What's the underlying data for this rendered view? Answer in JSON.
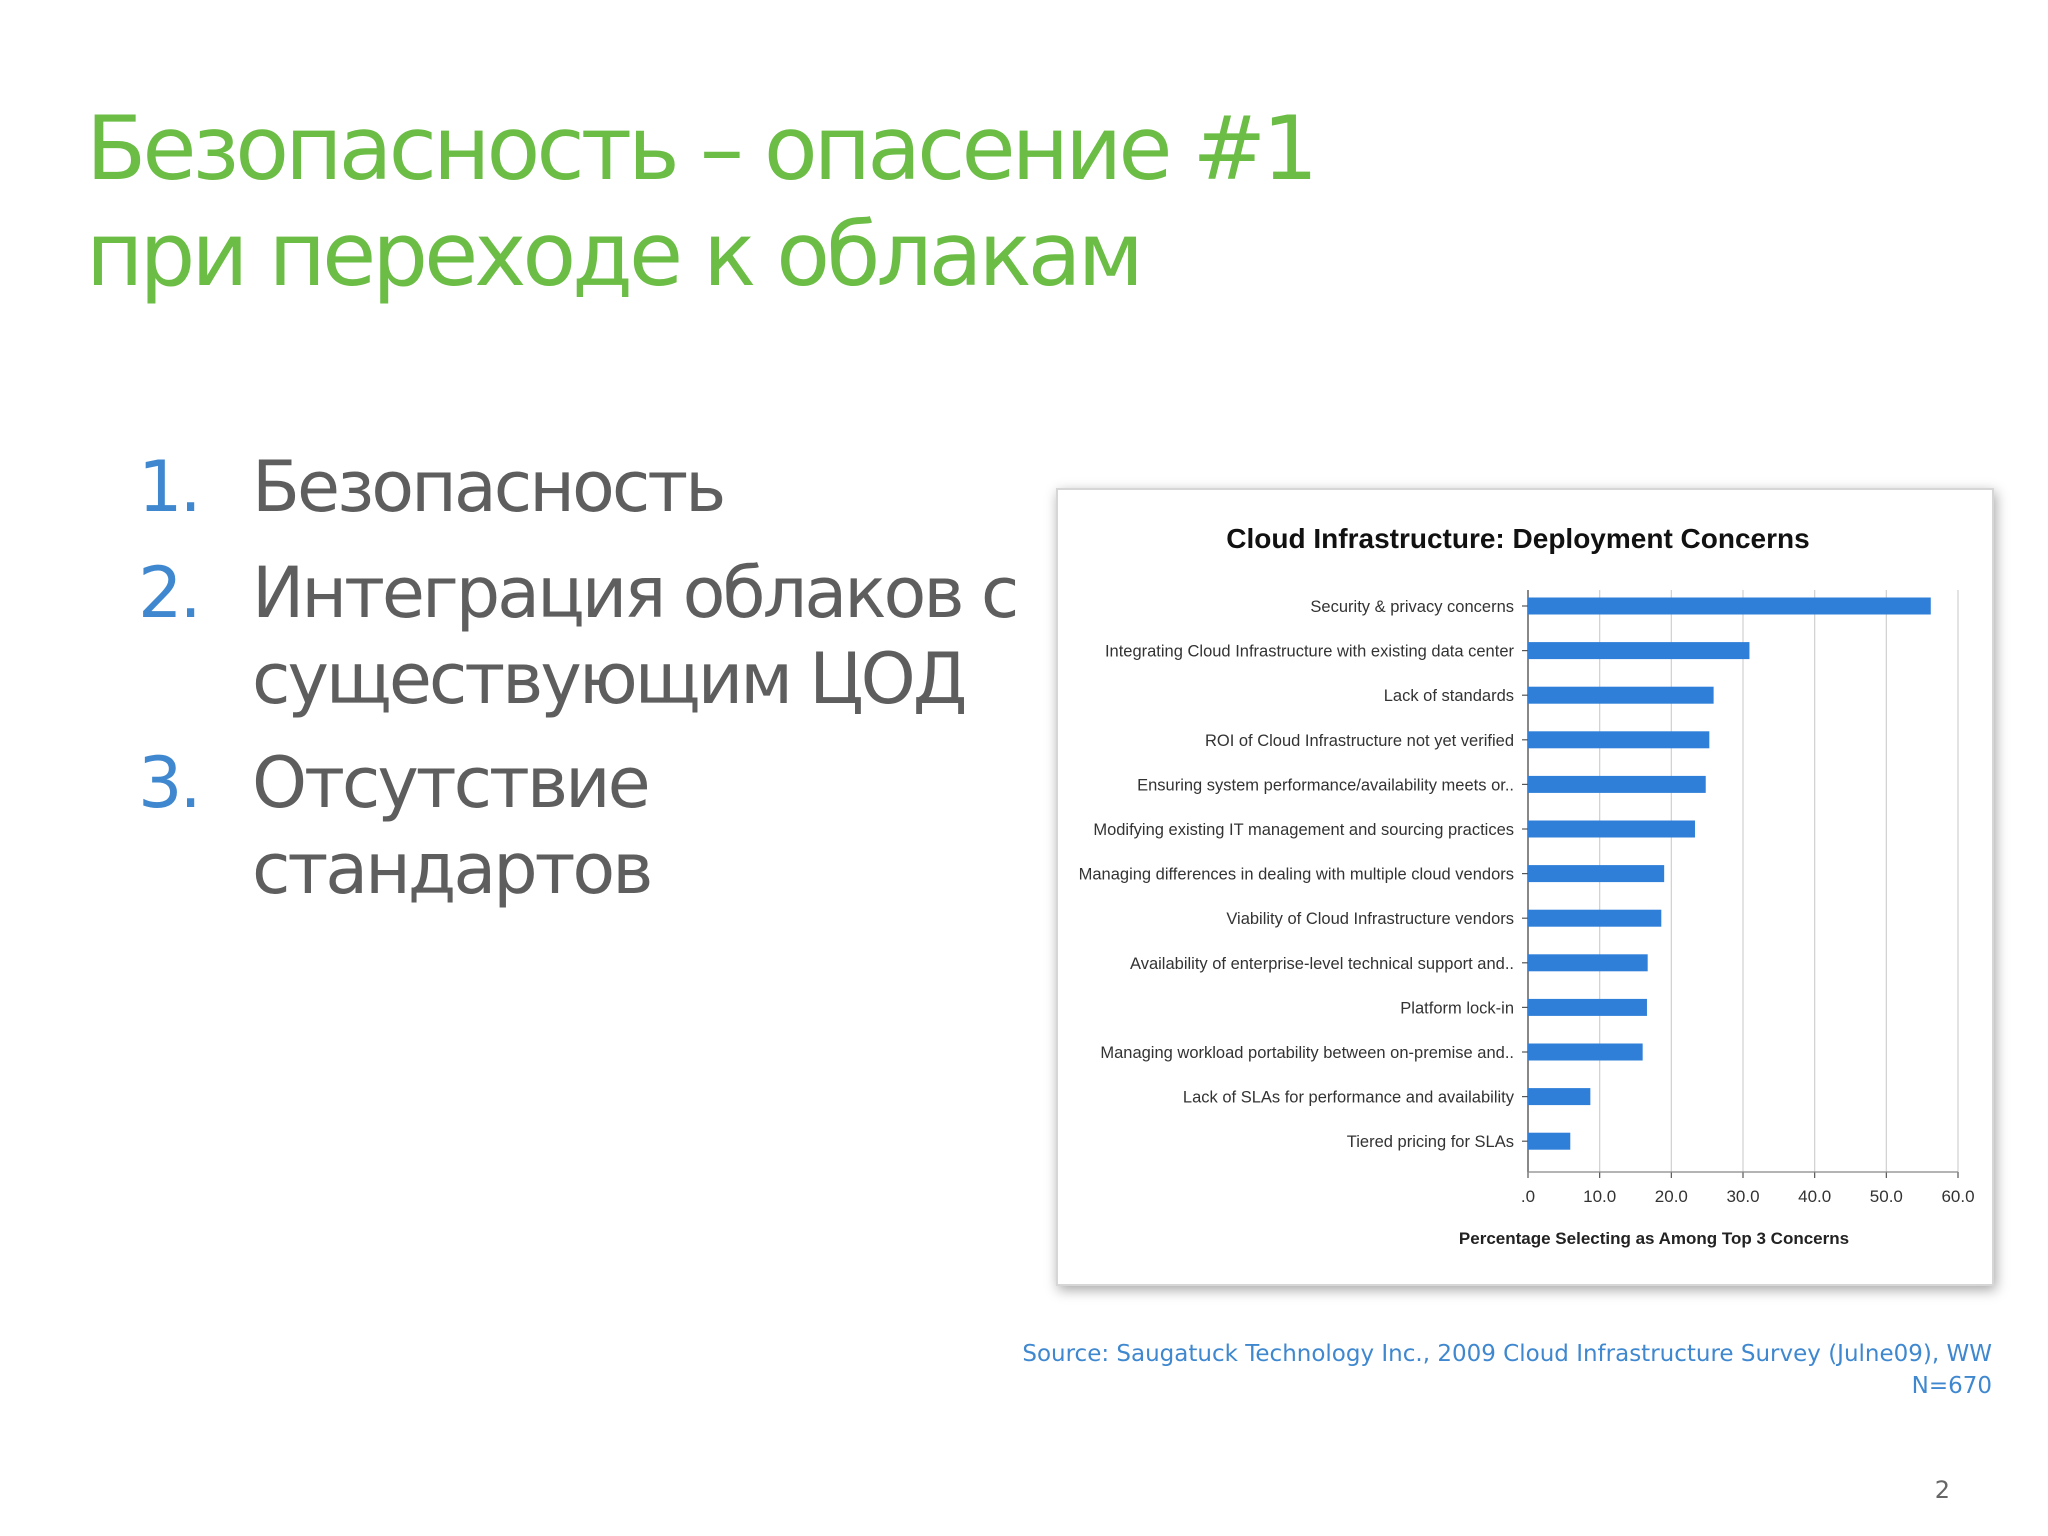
{
  "slide": {
    "title_line1": "Безопасность – опасение #1",
    "title_line2": "при переходе к облакам",
    "items": [
      {
        "num": "1.",
        "text": "Безопасность"
      },
      {
        "num": "2.",
        "text": "Интеграция облаков с существующим ЦОД"
      },
      {
        "num": "3.",
        "text": "Отсутствие стандартов"
      }
    ],
    "source": "Source: Saugatuck Technology Inc., 2009 Cloud Infrastructure Survey (Julne09), WW N=670",
    "page_number": "2"
  },
  "chart_data": {
    "type": "bar",
    "orientation": "horizontal",
    "title": "Cloud Infrastructure:  Deployment Concerns",
    "xlabel": "Percentage Selecting as Among Top 3 Concerns",
    "xlim": [
      0,
      60
    ],
    "xticks": [
      0,
      10,
      20,
      30,
      40,
      50,
      60
    ],
    "xtick_labels": [
      ".0",
      "10.0",
      "20.0",
      "30.0",
      "40.0",
      "50.0",
      "60.0"
    ],
    "grid": "vertical",
    "bar_color": "#2f7fd8",
    "categories": [
      "Security & privacy concerns",
      "Integrating Cloud Infrastructure with existing data center",
      "Lack of standards",
      "ROI of Cloud Infrastructure not yet verified",
      "Ensuring system performance/availability meets or..",
      "Modifying existing IT management and sourcing practices",
      "Managing differences in dealing with multiple cloud vendors",
      "Viability of Cloud Infrastructure vendors",
      "Availability of enterprise-level technical support and..",
      "Platform lock-in",
      "Managing workload portability between on-premise and..",
      "Lack of SLAs for performance and availability",
      "Tiered pricing for SLAs"
    ],
    "values": [
      56.2,
      30.9,
      25.9,
      25.3,
      24.8,
      23.3,
      19.0,
      18.6,
      16.7,
      16.6,
      16.0,
      8.7,
      5.9
    ]
  }
}
